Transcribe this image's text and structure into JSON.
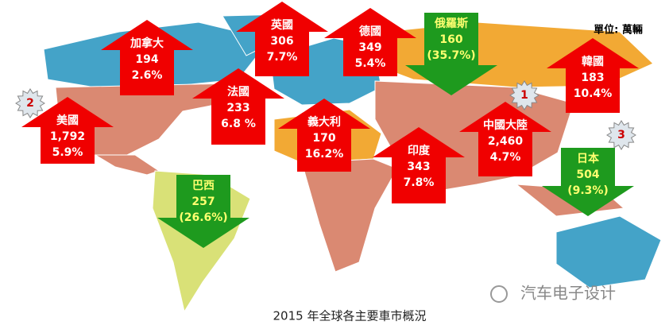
{
  "title": "2015 年全球各主要車市概況",
  "unit": "單位: 萬輛",
  "markets": [
    {
      "name": "加拿大",
      "sales": "194",
      "growth": "2.6%"
    },
    {
      "name": "英國",
      "sales": "306",
      "growth": "7.7%"
    },
    {
      "name": "德國",
      "sales": "349",
      "growth": "5.4%"
    },
    {
      "name": "俄羅斯",
      "sales": "160",
      "growth": "(35.7%)"
    },
    {
      "name": "韓國",
      "sales": "183",
      "growth": "10.4%"
    },
    {
      "name": "美國",
      "sales": "1,792",
      "growth": "5.9%"
    },
    {
      "name": "法國",
      "sales": "233",
      "growth": "6.8 %"
    },
    {
      "name": "義大利",
      "sales": "170",
      "growth": "16.2%"
    },
    {
      "name": "印度",
      "sales": "343",
      "growth": "7.8%"
    },
    {
      "name": "中國大陸",
      "sales": "2,460",
      "growth": "4.7%"
    },
    {
      "name": "日本",
      "sales": "504",
      "growth": "(9.3%)"
    },
    {
      "name": "巴西",
      "sales": "257",
      "growth": "(26.6%)"
    }
  ],
  "ranks": [
    "1",
    "2",
    "3"
  ],
  "watermark": "汽车电子设计"
}
